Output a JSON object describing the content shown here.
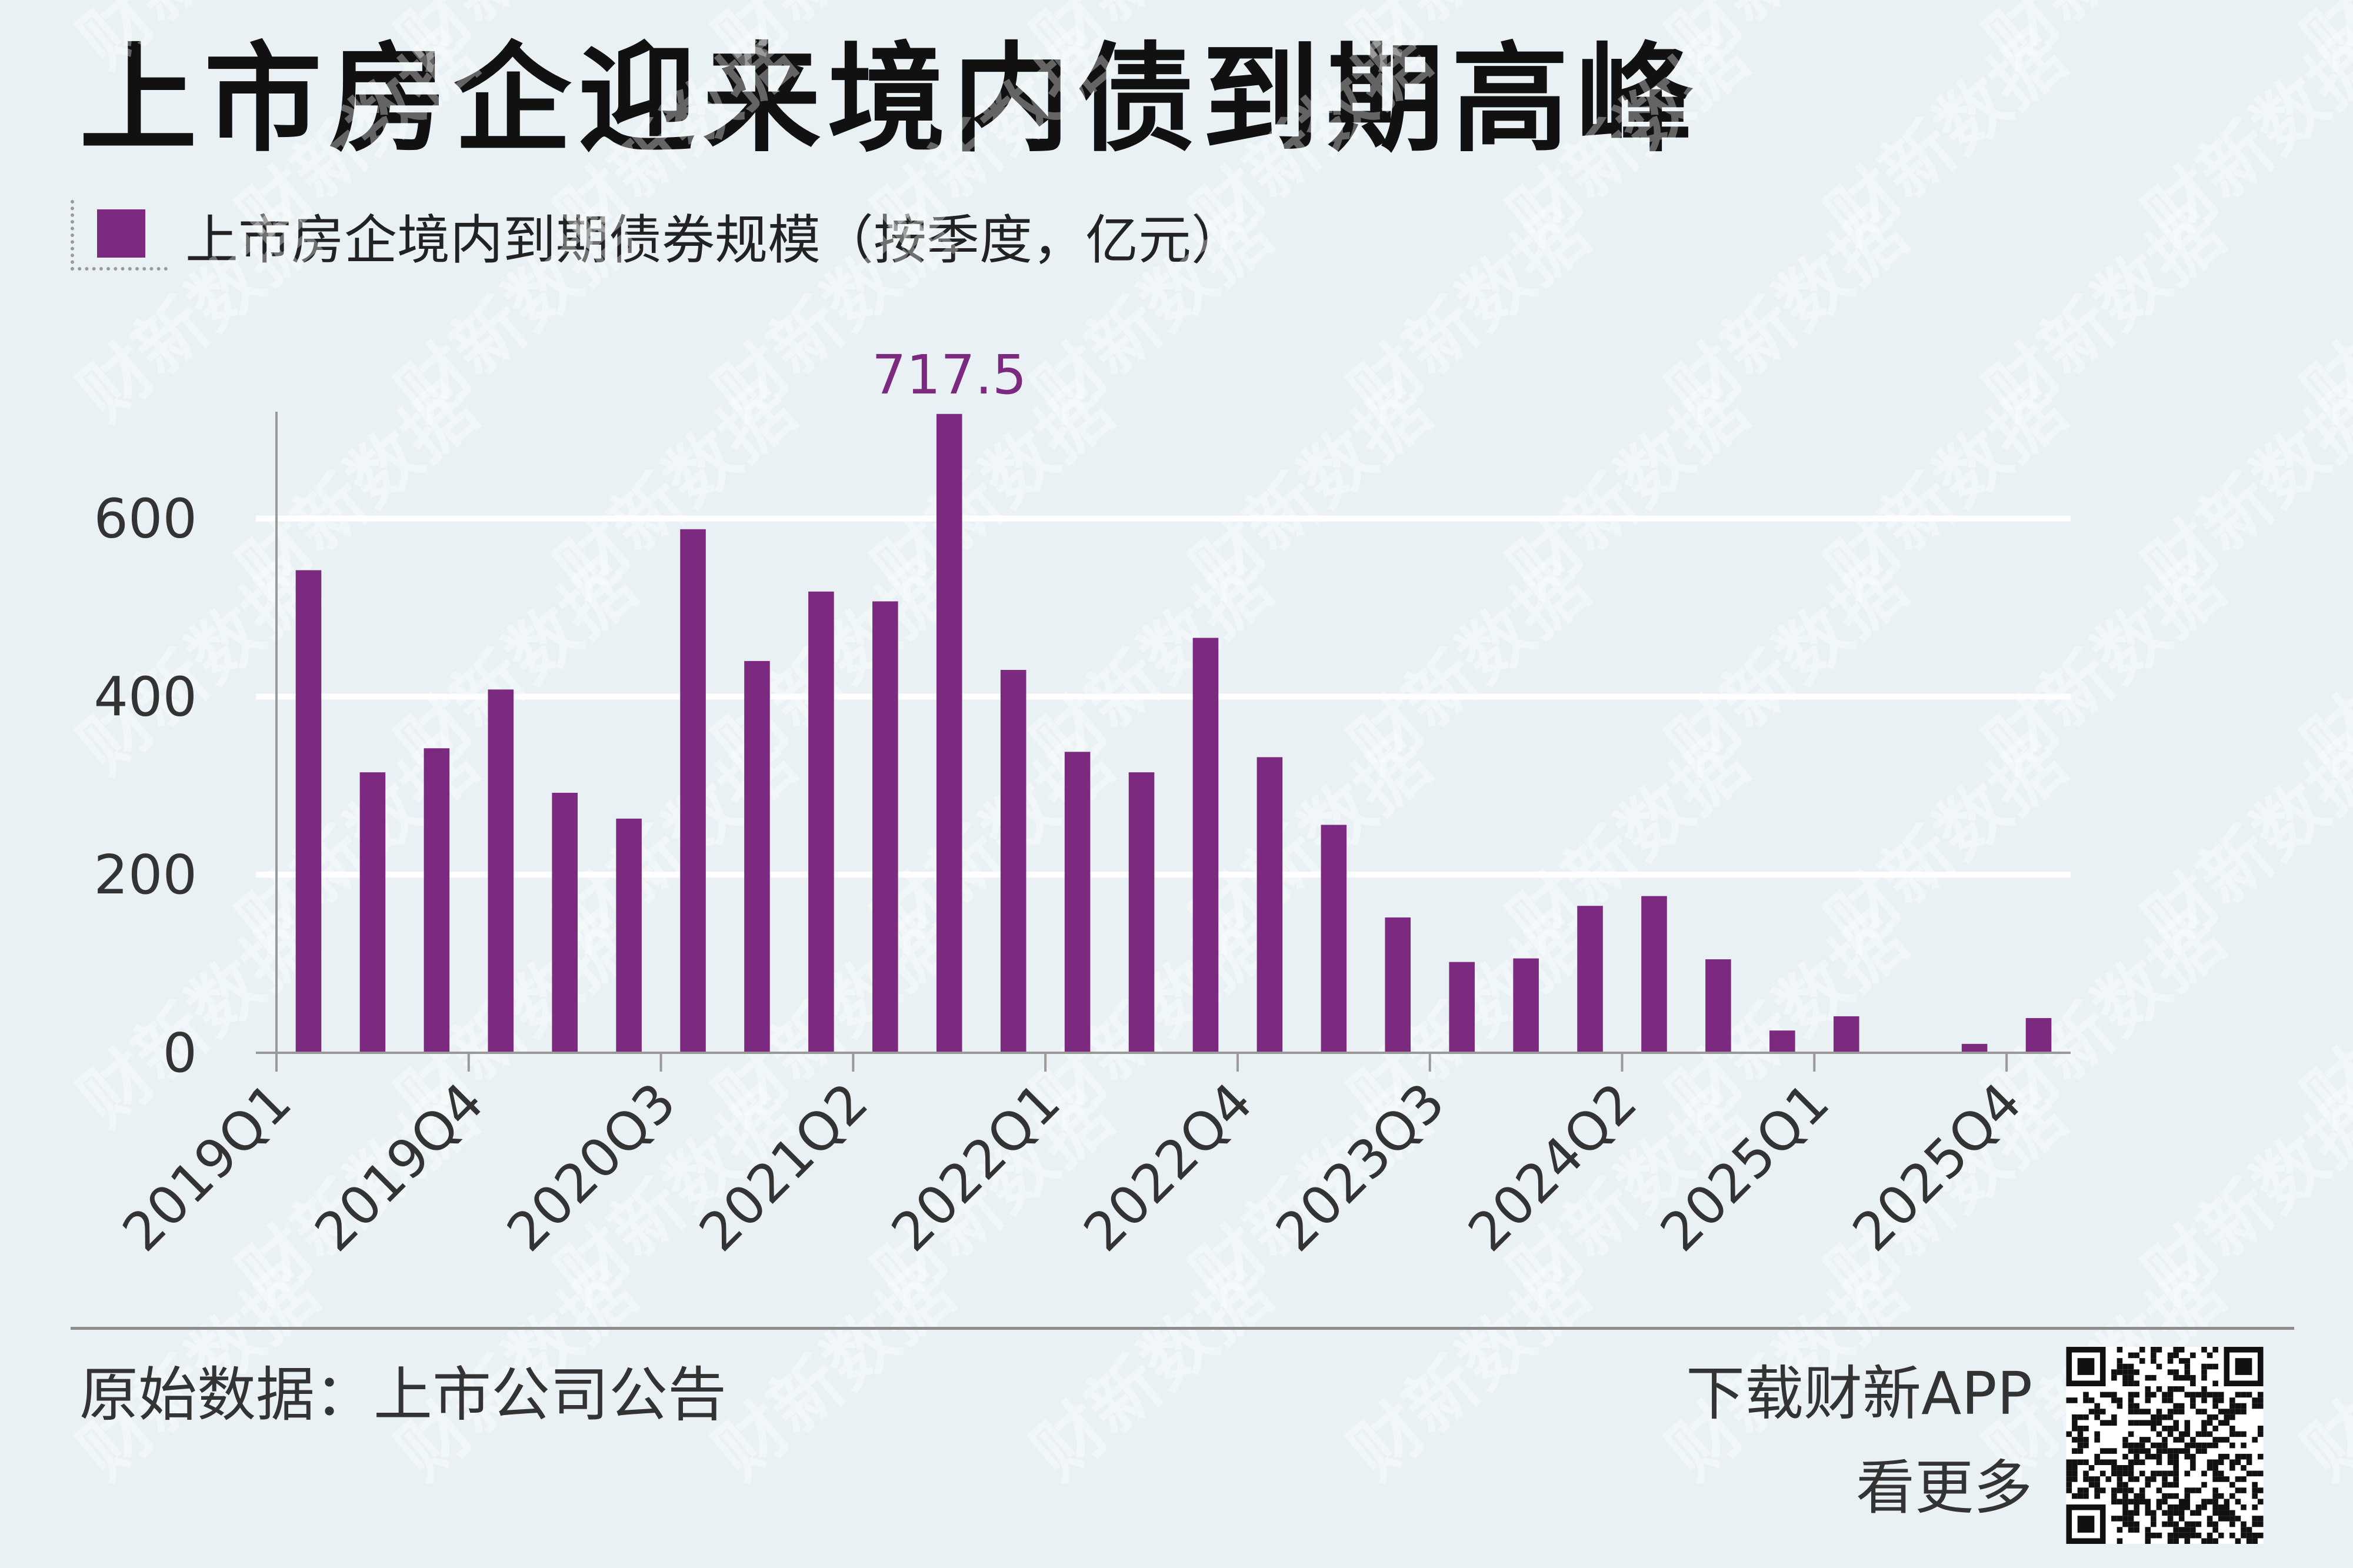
{
  "title": "上市房企迎来境内债到期高峰",
  "legend": {
    "label": "上市房企境内到期债券规模（按季度，亿元）",
    "color": "#7b2a7f"
  },
  "source": "原始数据：上市公司公告",
  "promo": {
    "line1": "下载财新APP",
    "line2": "看更多"
  },
  "watermark": "财新数据",
  "chart_data": {
    "type": "bar",
    "categories": [
      "2019Q1",
      "2019Q2",
      "2019Q3",
      "2019Q4",
      "2020Q1",
      "2020Q2",
      "2020Q3",
      "2020Q4",
      "2021Q1",
      "2021Q2",
      "2021Q3",
      "2021Q4",
      "2022Q1",
      "2022Q2",
      "2022Q3",
      "2022Q4",
      "2023Q1",
      "2023Q2",
      "2023Q3",
      "2023Q4",
      "2024Q1",
      "2024Q2",
      "2024Q3",
      "2024Q4",
      "2025Q1",
      "2025Q2",
      "2025Q3",
      "2025Q4"
    ],
    "series": [
      {
        "name": "上市房企境内到期债券规模（按季度，亿元）",
        "values": [
          542,
          315,
          342,
          408,
          292,
          263,
          588,
          440,
          518,
          507,
          717.5,
          430,
          338,
          315,
          466,
          332,
          256,
          152,
          102,
          106,
          165,
          176,
          105,
          25,
          41,
          0,
          10,
          39
        ],
        "color": "#7b2a7f"
      }
    ],
    "x_tick_labels": [
      "2019Q1",
      "2019Q4",
      "2020Q3",
      "2021Q2",
      "2022Q1",
      "2022Q4",
      "2023Q3",
      "2024Q2",
      "2025Q1",
      "2025Q4"
    ],
    "y_ticks": [
      0,
      200,
      400,
      600
    ],
    "ylim": [
      0,
      720
    ],
    "annotations": [
      {
        "category": "2021Q3",
        "text": "717.5"
      }
    ],
    "grid": true,
    "legend_position": "top-left",
    "title": "上市房企迎来境内债到期高峰",
    "xlabel": "",
    "ylabel": ""
  }
}
